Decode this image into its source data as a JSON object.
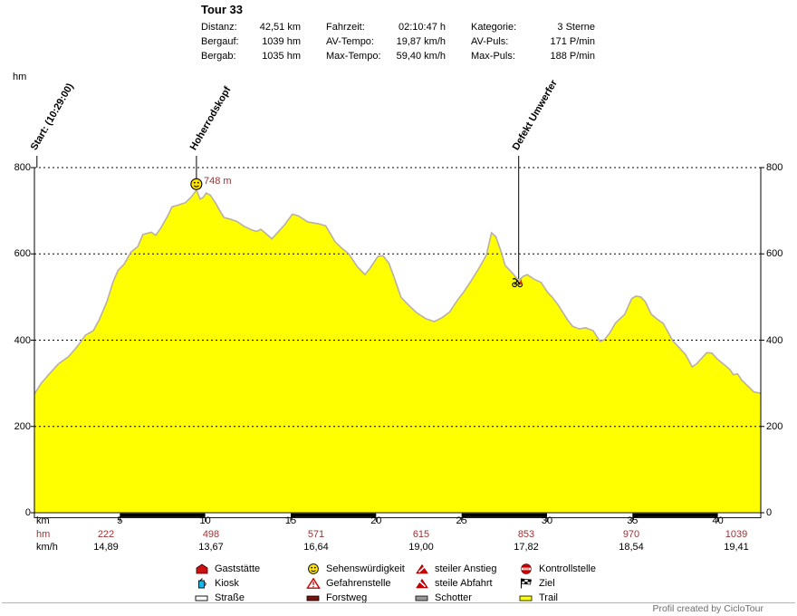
{
  "title": "Tour 33",
  "header": {
    "columns": [
      {
        "rows": [
          {
            "label": "Distanz:",
            "value": "42,51 km"
          },
          {
            "label": "Bergauf:",
            "value": "1039 hm"
          },
          {
            "label": "Bergab:",
            "value": "1035 hm"
          }
        ]
      },
      {
        "rows": [
          {
            "label": "Fahrzeit:",
            "value": "02:10:47 h"
          },
          {
            "label": "AV-Tempo:",
            "value": "19,87 km/h"
          },
          {
            "label": "Max-Tempo:",
            "value": "59,40 km/h"
          }
        ]
      },
      {
        "rows": [
          {
            "label": "Kategorie:",
            "value": "3 Sterne"
          },
          {
            "label": "AV-Puls:",
            "value": "171 P/min"
          },
          {
            "label": "Max-Puls:",
            "value": "188 P/min"
          }
        ]
      }
    ]
  },
  "axis": {
    "y_unit": "hm",
    "x_unit": "km",
    "y_ticks": [
      0,
      200,
      400,
      600,
      800
    ],
    "x_ticks": [
      5,
      10,
      15,
      20,
      25,
      30,
      35,
      40
    ]
  },
  "segment_rows": {
    "hm_label": "hm",
    "hm_values": [
      "222",
      "498",
      "571",
      "615",
      "853",
      "970",
      "1039"
    ],
    "kmh_label": "km/h",
    "kmh_values": [
      "14,89",
      "13,67",
      "16,64",
      "19,00",
      "17,82",
      "18,54",
      "19,41"
    ]
  },
  "chart_data": {
    "type": "area",
    "title": "Tour 33",
    "xlabel": "km",
    "ylabel": "hm",
    "xlim": [
      0,
      42.51
    ],
    "ylim": [
      0,
      800
    ],
    "grid": "dashed horizontal lines at 200, 400, 600, 800",
    "fill_color": "#ffff00",
    "outline_color": "#b8b0a4",
    "accent_red": "#993333",
    "scale_bar": "alternating white/black segments every 5 km along baseline",
    "black_bar_segments_km": [
      [
        5,
        10
      ],
      [
        15,
        20
      ],
      [
        25,
        30
      ],
      [
        35,
        40
      ]
    ],
    "annotations": [
      {
        "label": "Start: (10:29:00)",
        "km": 0.15
      },
      {
        "label": "Hoherrodskopf",
        "km": 9.48,
        "elevation": 748,
        "value_label": "748 m",
        "icon": "smiley-icon"
      },
      {
        "label": "Defekt Umwerfer",
        "km": 28.34,
        "elevation": 538,
        "icon": "breakdown-icon"
      }
    ],
    "profile": [
      [
        0,
        275
      ],
      [
        0.4,
        300
      ],
      [
        0.9,
        323
      ],
      [
        1.4,
        345
      ],
      [
        2.0,
        362
      ],
      [
        2.5,
        385
      ],
      [
        3.0,
        412
      ],
      [
        3.45,
        422
      ],
      [
        3.8,
        448
      ],
      [
        4.25,
        490
      ],
      [
        4.6,
        535
      ],
      [
        4.9,
        562
      ],
      [
        5.25,
        576
      ],
      [
        5.65,
        604
      ],
      [
        6.05,
        617
      ],
      [
        6.35,
        645
      ],
      [
        6.85,
        650
      ],
      [
        7.1,
        643
      ],
      [
        7.4,
        660
      ],
      [
        7.8,
        688
      ],
      [
        8.05,
        709
      ],
      [
        8.4,
        713
      ],
      [
        8.85,
        719
      ],
      [
        9.2,
        733
      ],
      [
        9.48,
        748
      ],
      [
        9.7,
        727
      ],
      [
        9.9,
        732
      ],
      [
        10.05,
        741
      ],
      [
        10.3,
        736
      ],
      [
        10.6,
        718
      ],
      [
        10.85,
        700
      ],
      [
        11.1,
        684
      ],
      [
        11.5,
        680
      ],
      [
        11.85,
        675
      ],
      [
        12.3,
        663
      ],
      [
        12.7,
        656
      ],
      [
        13.0,
        652
      ],
      [
        13.25,
        657
      ],
      [
        13.55,
        647
      ],
      [
        13.9,
        635
      ],
      [
        14.25,
        650
      ],
      [
        14.65,
        668
      ],
      [
        15.1,
        692
      ],
      [
        15.45,
        688
      ],
      [
        16.0,
        674
      ],
      [
        16.6,
        670
      ],
      [
        17.05,
        665
      ],
      [
        17.6,
        628
      ],
      [
        18.0,
        613
      ],
      [
        18.4,
        600
      ],
      [
        18.9,
        570
      ],
      [
        19.35,
        552
      ],
      [
        19.7,
        570
      ],
      [
        20.1,
        594
      ],
      [
        20.4,
        596
      ],
      [
        20.75,
        578
      ],
      [
        21.1,
        540
      ],
      [
        21.45,
        500
      ],
      [
        21.8,
        485
      ],
      [
        22.35,
        464
      ],
      [
        22.9,
        450
      ],
      [
        23.4,
        443
      ],
      [
        23.85,
        452
      ],
      [
        24.3,
        465
      ],
      [
        24.75,
        492
      ],
      [
        25.15,
        513
      ],
      [
        25.55,
        537
      ],
      [
        26.05,
        569
      ],
      [
        26.45,
        597
      ],
      [
        26.75,
        649
      ],
      [
        27.0,
        640
      ],
      [
        27.3,
        607
      ],
      [
        27.55,
        573
      ],
      [
        27.8,
        563
      ],
      [
        28.05,
        552
      ],
      [
        28.34,
        538
      ],
      [
        28.6,
        548
      ],
      [
        28.85,
        552
      ],
      [
        29.25,
        541
      ],
      [
        29.65,
        534
      ],
      [
        30.05,
        510
      ],
      [
        30.3,
        500
      ],
      [
        30.65,
        482
      ],
      [
        31.2,
        447
      ],
      [
        31.5,
        432
      ],
      [
        31.9,
        426
      ],
      [
        32.25,
        429
      ],
      [
        32.7,
        422
      ],
      [
        33.1,
        397
      ],
      [
        33.35,
        401
      ],
      [
        33.65,
        415
      ],
      [
        34.0,
        439
      ],
      [
        34.2,
        447
      ],
      [
        34.55,
        460
      ],
      [
        34.95,
        496
      ],
      [
        35.2,
        502
      ],
      [
        35.5,
        500
      ],
      [
        35.75,
        489
      ],
      [
        36.1,
        460
      ],
      [
        36.5,
        447
      ],
      [
        36.8,
        439
      ],
      [
        37.35,
        399
      ],
      [
        37.7,
        384
      ],
      [
        38.1,
        367
      ],
      [
        38.35,
        349
      ],
      [
        38.5,
        338
      ],
      [
        38.75,
        345
      ],
      [
        39.05,
        358
      ],
      [
        39.35,
        371
      ],
      [
        39.65,
        370
      ],
      [
        40.0,
        355
      ],
      [
        40.35,
        344
      ],
      [
        40.7,
        332
      ],
      [
        40.9,
        320
      ],
      [
        41.15,
        322
      ],
      [
        41.4,
        307
      ],
      [
        41.8,
        292
      ],
      [
        42.1,
        280
      ],
      [
        42.51,
        277
      ]
    ]
  },
  "legend": {
    "items": [
      {
        "icon": "house-icon",
        "label": "Gaststätte"
      },
      {
        "icon": "kiosk-icon",
        "label": "Kiosk"
      },
      {
        "icon": "road-icon",
        "label": "Straße"
      },
      {
        "icon": "smiley-icon",
        "label": "Sehenswürdigkeit"
      },
      {
        "icon": "danger-triangle-icon",
        "label": "Gefahrenstelle"
      },
      {
        "icon": "forest-road-icon",
        "label": "Forstweg"
      },
      {
        "icon": "steep-climb-icon",
        "label": "steiler Anstieg"
      },
      {
        "icon": "steep-descent-icon",
        "label": "steile Abfahrt"
      },
      {
        "icon": "gravel-icon",
        "label": "Schotter"
      },
      {
        "icon": "checkpoint-stop-icon",
        "label": "Kontrollstelle"
      },
      {
        "icon": "finish-flag-icon",
        "label": "Ziel"
      },
      {
        "icon": "trail-icon",
        "label": "Trail"
      }
    ]
  },
  "footer": {
    "credit": "Profil created by CicloTour"
  }
}
